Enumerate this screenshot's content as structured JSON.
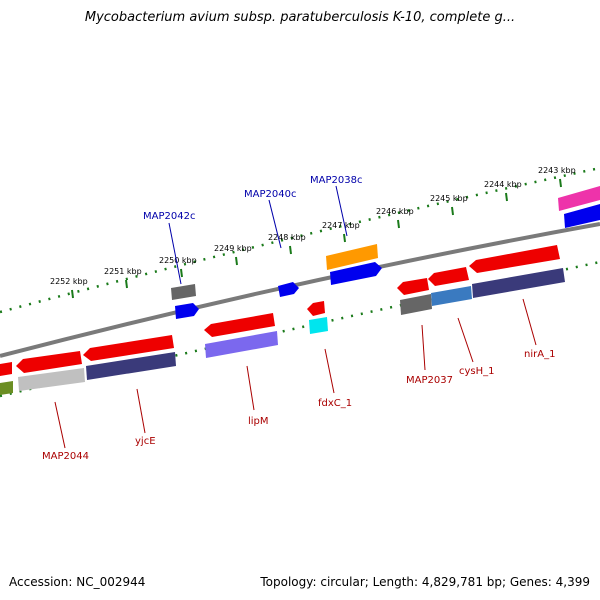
{
  "title": "Mycobacterium avium subsp. paratuberculosis K-10, complete g...",
  "footer": {
    "accession": "Accession: NC_002944",
    "topology": "Topology: circular; Length: 4,829,781 bp; Genes: 4,399"
  },
  "colors": {
    "backbone": "#808080",
    "tick": "#1a7a1a",
    "forward_label": "#0000aa",
    "reverse_label": "#aa0000"
  },
  "ticks": [
    "2243 kbp",
    "2244 kbp",
    "2245 kbp",
    "2246 kbp",
    "2247 kbp",
    "2248 kbp",
    "2249 kbp",
    "2250 kbp",
    "2251 kbp",
    "2252 kbp"
  ],
  "labels": {
    "forward": [
      "MAP2042c",
      "MAP2040c",
      "MAP2038c"
    ],
    "reverse": [
      "MAP2044",
      "yjcE",
      "lipM",
      "fdxC_1",
      "MAP2037",
      "cysH_1",
      "nirA_1"
    ]
  }
}
